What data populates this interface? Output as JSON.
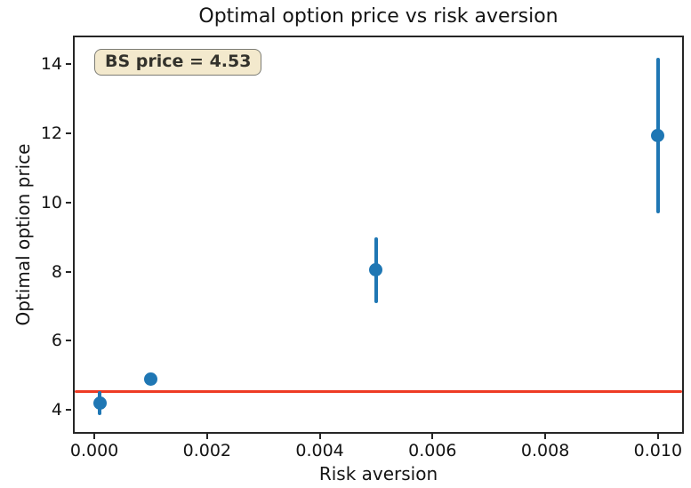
{
  "chart_data": {
    "type": "scatter",
    "title": "Optimal option price vs risk aversion",
    "xlabel": "Risk aversion",
    "ylabel": "Optimal option price",
    "xlim": [
      -0.00038,
      0.01046
    ],
    "ylim": [
      3.31,
      14.83
    ],
    "x_ticks": [
      0.0,
      0.002,
      0.004,
      0.006,
      0.008,
      0.01
    ],
    "x_tick_labels": [
      "0.000",
      "0.002",
      "0.004",
      "0.006",
      "0.008",
      "0.010"
    ],
    "y_ticks": [
      4,
      6,
      8,
      10,
      12,
      14
    ],
    "y_tick_labels": [
      "4",
      "6",
      "8",
      "10",
      "12",
      "14"
    ],
    "grid": false,
    "legend": null,
    "series": [
      {
        "name": "optimal option price with error bars",
        "marker": "circle",
        "color": "#1f77b4",
        "points": [
          {
            "x": 0.0001,
            "y": 4.2,
            "yerr": 0.35
          },
          {
            "x": 0.001,
            "y": 4.9,
            "yerr": 0.08
          },
          {
            "x": 0.005,
            "y": 8.05,
            "yerr": 0.95
          },
          {
            "x": 0.01,
            "y": 11.95,
            "yerr": 2.25
          }
        ]
      }
    ],
    "hline": {
      "y": 4.53,
      "color": "#ee3b24"
    },
    "annotation": {
      "text": "BS price = 4.53",
      "value": 4.53,
      "bg_color": "#f3e9cd",
      "border_color": "#7d7d75"
    },
    "spine_color": "#262626"
  }
}
